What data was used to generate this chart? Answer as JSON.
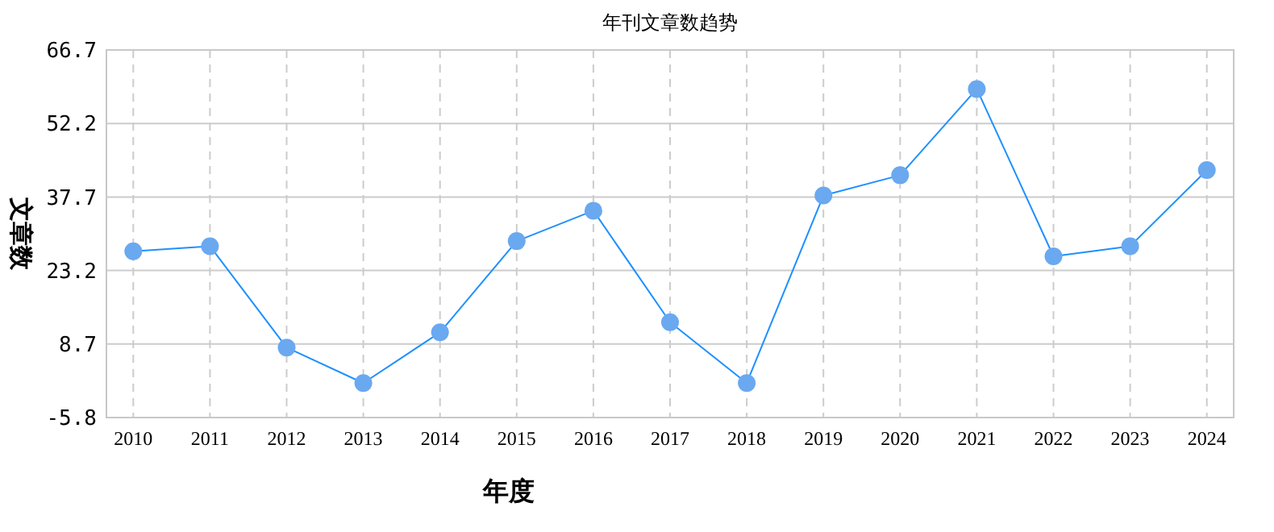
{
  "chart_data": {
    "type": "line",
    "title": "年刊文章数趋势",
    "xlabel": "年度",
    "ylabel": "文章数",
    "categories": [
      "2010",
      "2011",
      "2012",
      "2013",
      "2014",
      "2015",
      "2016",
      "2017",
      "2018",
      "2019",
      "2020",
      "2021",
      "2022",
      "2023",
      "2024"
    ],
    "series": [
      {
        "color": "#1e90ff",
        "values": [
          27,
          28,
          8,
          1,
          11,
          29,
          35,
          13,
          1,
          38,
          42,
          59,
          26,
          28,
          43
        ]
      }
    ],
    "ylim": [
      -5.8,
      66.7
    ],
    "yticks": [
      -5.8,
      8.7,
      23.2,
      37.7,
      52.2,
      66.7
    ],
    "grid": true,
    "marker": "circle",
    "line_style": "solid"
  }
}
